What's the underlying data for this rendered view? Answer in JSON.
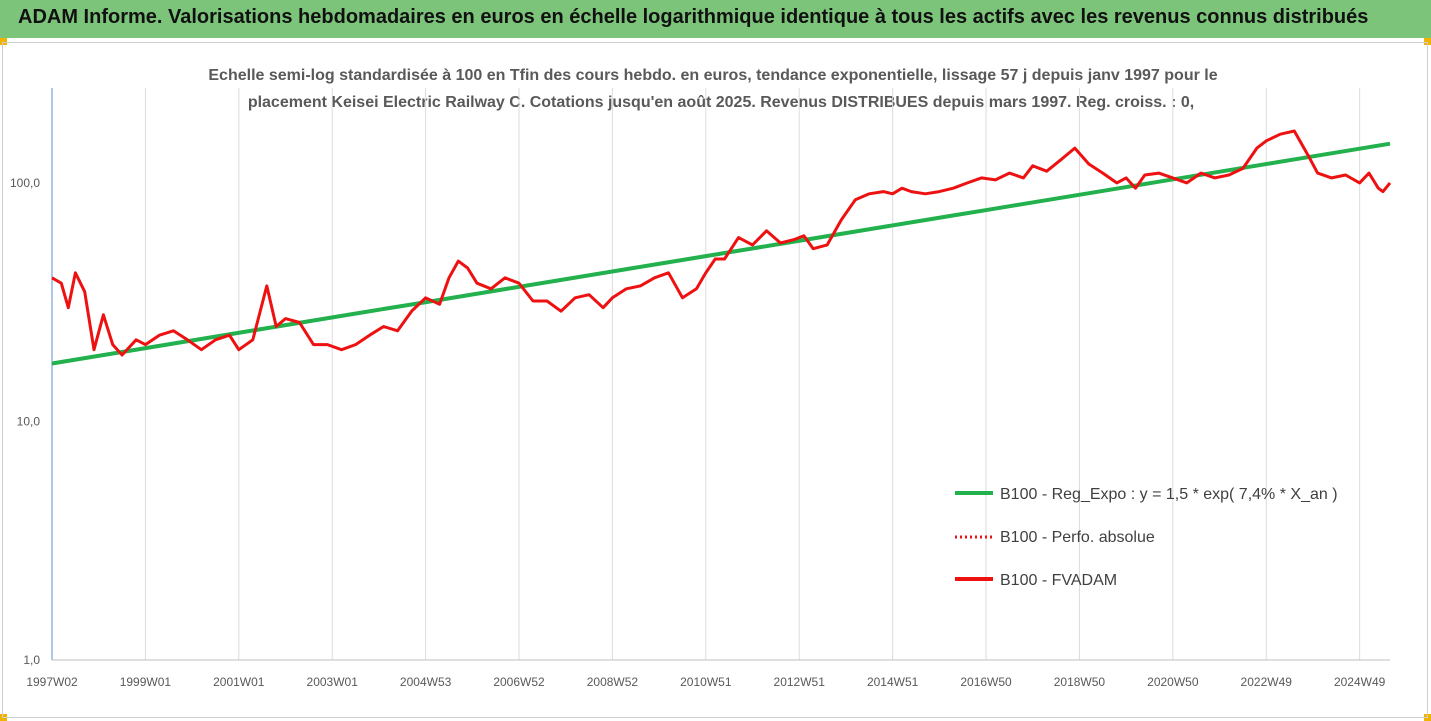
{
  "banner": {
    "title": "ADAM Informe. Valorisations hebdomadaires en euros en échelle logarithmique identique à tous les actifs avec les revenus connus distribués"
  },
  "chart_data": {
    "type": "line",
    "title_lines": [
      "Echelle semi-log standardisée à 100 en Tfin des cours hebdo. en euros, tendance exponentielle, lissage 57 j depuis janv 1997 pour le",
      "placement Keisei Electric Railway C. Cotations jusqu'en août 2025. Revenus DISTRIBUES depuis mars 1997. Reg. croiss. : 0,"
    ],
    "y_scale": "log",
    "ylim": [
      1,
      250
    ],
    "y_ticks": [
      {
        "value": 1,
        "label": "1,0"
      },
      {
        "value": 10,
        "label": "10,0"
      },
      {
        "value": 100,
        "label": "100,0"
      }
    ],
    "xlim": [
      1997.0,
      2025.65
    ],
    "x_ticks": [
      {
        "value": 1997.0,
        "label": "1997W02"
      },
      {
        "value": 1999.0,
        "label": "1999W01"
      },
      {
        "value": 2001.0,
        "label": "2001W01"
      },
      {
        "value": 2003.0,
        "label": "2003W01"
      },
      {
        "value": 2005.0,
        "label": "2004W53"
      },
      {
        "value": 2007.0,
        "label": "2006W52"
      },
      {
        "value": 2009.0,
        "label": "2008W52"
      },
      {
        "value": 2011.0,
        "label": "2010W51"
      },
      {
        "value": 2013.0,
        "label": "2012W51"
      },
      {
        "value": 2015.0,
        "label": "2014W51"
      },
      {
        "value": 2017.0,
        "label": "2016W50"
      },
      {
        "value": 2019.0,
        "label": "2018W50"
      },
      {
        "value": 2021.0,
        "label": "2020W50"
      },
      {
        "value": 2023.0,
        "label": "2022W49"
      },
      {
        "value": 2025.0,
        "label": "2024W49"
      }
    ],
    "grid": "vertical",
    "legend_position": "right",
    "series": [
      {
        "name": "B100 - Reg_Expo : y = 1,5 * exp( 7,4% *  X_an )",
        "color": "#22b14c",
        "style": "solid",
        "x": [
          1997.0,
          2025.65
        ],
        "values": [
          17.5,
          146
        ]
      },
      {
        "name": "B100 - Perfo. absolue",
        "color": "#ee1111",
        "style": "dotted",
        "x": [],
        "values": []
      },
      {
        "name": "B100 - FVADAM",
        "color": "#ee1111",
        "style": "solid",
        "x": [
          1997.0,
          1997.2,
          1997.35,
          1997.5,
          1997.7,
          1997.9,
          1998.1,
          1998.3,
          1998.5,
          1998.8,
          1999.0,
          1999.3,
          1999.6,
          1999.9,
          2000.2,
          2000.5,
          2000.8,
          2001.0,
          2001.3,
          2001.6,
          2001.8,
          2002.0,
          2002.3,
          2002.6,
          2002.9,
          2003.2,
          2003.5,
          2003.8,
          2004.1,
          2004.4,
          2004.7,
          2005.0,
          2005.3,
          2005.5,
          2005.7,
          2005.9,
          2006.1,
          2006.4,
          2006.7,
          2007.0,
          2007.3,
          2007.6,
          2007.9,
          2008.2,
          2008.5,
          2008.8,
          2009.0,
          2009.3,
          2009.6,
          2009.9,
          2010.2,
          2010.5,
          2010.8,
          2011.0,
          2011.2,
          2011.4,
          2011.7,
          2012.0,
          2012.3,
          2012.6,
          2012.9,
          2013.1,
          2013.3,
          2013.6,
          2013.9,
          2014.2,
          2014.5,
          2014.8,
          2015.0,
          2015.2,
          2015.4,
          2015.7,
          2016.0,
          2016.3,
          2016.6,
          2016.9,
          2017.2,
          2017.5,
          2017.8,
          2018.0,
          2018.3,
          2018.6,
          2018.9,
          2019.2,
          2019.5,
          2019.8,
          2020.0,
          2020.2,
          2020.4,
          2020.7,
          2021.0,
          2021.3,
          2021.6,
          2021.9,
          2022.2,
          2022.5,
          2022.8,
          2023.0,
          2023.3,
          2023.6,
          2023.9,
          2024.1,
          2024.4,
          2024.7,
          2025.0,
          2025.2,
          2025.4,
          2025.5,
          2025.65
        ],
        "values": [
          40,
          38,
          30,
          42,
          35,
          20,
          28,
          21,
          19,
          22,
          21,
          23,
          24,
          22,
          20,
          22,
          23,
          20,
          22,
          37,
          25,
          27,
          26,
          21,
          21,
          20,
          21,
          23,
          25,
          24,
          29,
          33,
          31,
          40,
          47,
          44,
          38,
          36,
          40,
          38,
          32,
          32,
          29,
          33,
          34,
          30,
          33,
          36,
          37,
          40,
          42,
          33,
          36,
          42,
          48,
          48,
          59,
          55,
          63,
          56,
          58,
          60,
          53,
          55,
          70,
          85,
          90,
          92,
          90,
          95,
          92,
          90,
          92,
          95,
          100,
          105,
          103,
          110,
          105,
          118,
          112,
          125,
          140,
          120,
          110,
          100,
          105,
          95,
          108,
          110,
          105,
          100,
          110,
          105,
          108,
          115,
          140,
          150,
          160,
          165,
          130,
          110,
          105,
          108,
          100,
          110,
          95,
          92,
          100
        ]
      }
    ]
  }
}
